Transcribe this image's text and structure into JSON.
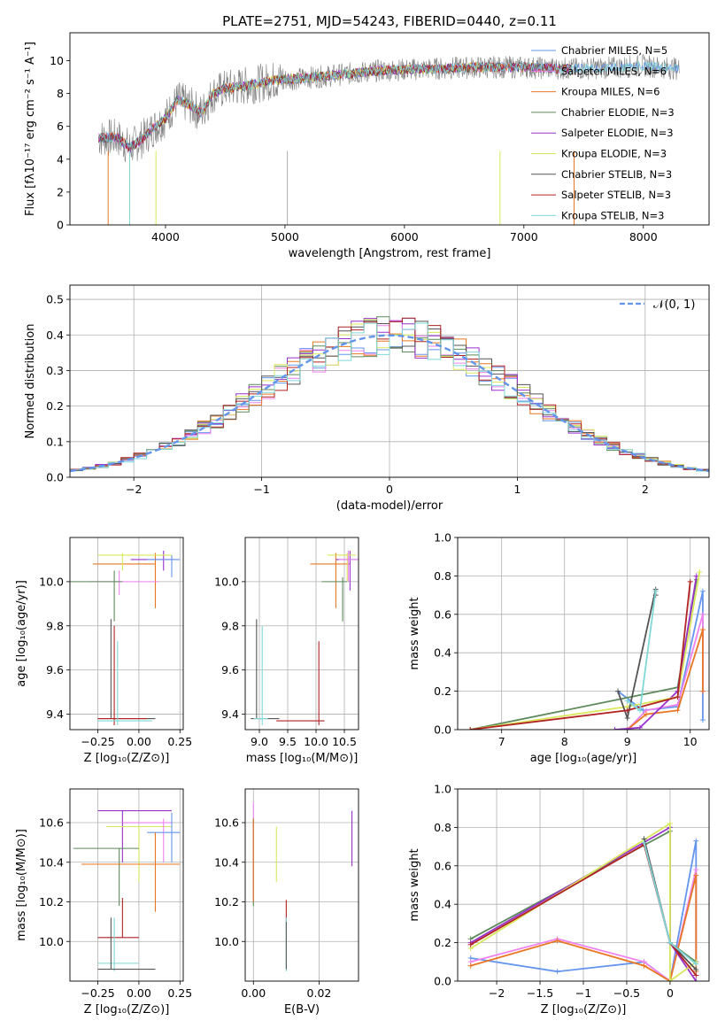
{
  "chart_data": [
    {
      "type": "line",
      "title": "PLATE=2751, MJD=54243, FIBERID=0440, z=0.11",
      "xlabel": "wavelength [Angstrom, rest frame]",
      "ylabel": "Flux [fλ10⁻¹⁷ erg cm⁻² s⁻¹ A⁻¹]",
      "xlim": [
        3200,
        8550
      ],
      "ylim": [
        0,
        11.7
      ],
      "xticks": [
        4000,
        5000,
        6000,
        7000,
        8000
      ],
      "yticks": [
        0,
        2,
        4,
        6,
        8,
        10
      ],
      "grid": false,
      "legend_position": "top-right",
      "legend": [
        {
          "name": "Chabrier MILES, N_SSP=5",
          "color": "#6495ed"
        },
        {
          "name": "Salpeter MILES, N_SSP=6",
          "color": "#ee82ee"
        },
        {
          "name": "Kroupa MILES, N_SSP=6",
          "color": "#e87722"
        },
        {
          "name": "Chabrier ELODIE, N_SSP=3",
          "color": "#5d8a5a"
        },
        {
          "name": "Salpeter ELODIE, N_SSP=3",
          "color": "#9932cc"
        },
        {
          "name": "Kroupa ELODIE, N_SSP=3",
          "color": "#d8e85a"
        },
        {
          "name": "Chabrier STELIB, N_SSP=3",
          "color": "#555555"
        },
        {
          "name": "Salpeter STELIB, N_SSP=3",
          "color": "#b22222"
        },
        {
          "name": "Kroupa STELIB, N_SSP=3",
          "color": "#7fd8d8"
        }
      ],
      "spectrum_envelope": {
        "x": [
          3440,
          3600,
          3700,
          3800,
          3900,
          4000,
          4100,
          4200,
          4300,
          4400,
          4500,
          4700,
          4900,
          5100,
          5400,
          5800,
          6200,
          6600,
          7000,
          7400,
          7800,
          8000,
          8300
        ],
        "y": [
          5.3,
          5.3,
          4.7,
          5.2,
          5.9,
          6.5,
          7.6,
          7.3,
          6.8,
          8.0,
          8.3,
          8.5,
          8.8,
          8.9,
          9.1,
          9.4,
          9.5,
          9.6,
          9.6,
          9.5,
          9.6,
          9.7,
          9.5
        ]
      }
    },
    {
      "type": "histogram",
      "xlabel": "(data-model)/error",
      "ylabel": "Normed distribution",
      "xlim": [
        -2.5,
        2.5
      ],
      "ylim": [
        0,
        0.54
      ],
      "xticks": [
        -2,
        -1,
        0,
        1,
        2
      ],
      "yticks": [
        0.0,
        0.1,
        0.2,
        0.3,
        0.4,
        0.5
      ],
      "grid": true,
      "legend_position": "top-right",
      "legend": [
        {
          "name": "𝒩(0, 1)",
          "color": "#6495ed",
          "style": "dashed"
        }
      ],
      "bin_width": 0.1
    },
    {
      "type": "errorbar",
      "xlabel": "Z [log₁₀(Z/Z⊙)]",
      "ylabel": "age  [log₁₀(age/yr)]",
      "xlim": [
        -0.42,
        0.27
      ],
      "ylim": [
        9.33,
        10.2
      ],
      "xticks": [
        -0.25,
        0.0,
        0.25
      ],
      "yticks": [
        9.4,
        9.6,
        9.8,
        10.0
      ],
      "grid": true
    },
    {
      "type": "errorbar",
      "xlabel": "mass [log₁₀(M/M⊙)]",
      "ylabel": "",
      "xlim": [
        8.75,
        10.75
      ],
      "ylim": [
        9.33,
        10.2
      ],
      "xticks": [
        9.0,
        9.5,
        10.0,
        10.5
      ],
      "yticks": [
        9.4,
        9.6,
        9.8,
        10.0
      ],
      "grid": true
    },
    {
      "type": "line",
      "xlabel": "age  [log₁₀(age/yr)]",
      "ylabel": "mass weight",
      "xlim": [
        6.3,
        10.3
      ],
      "ylim": [
        0,
        1
      ],
      "xticks": [
        7,
        8,
        9,
        10
      ],
      "yticks": [
        0.0,
        0.2,
        0.4,
        0.6,
        0.8,
        1.0
      ],
      "grid": true
    },
    {
      "type": "errorbar",
      "xlabel": "Z [log₁₀(Z/Z⊙)]",
      "ylabel": "mass [log₁₀(M/M⊙)]",
      "xlim": [
        -0.42,
        0.27
      ],
      "ylim": [
        9.8,
        10.77
      ],
      "xticks": [
        -0.25,
        0.0,
        0.25
      ],
      "yticks": [
        10.0,
        10.2,
        10.4,
        10.6
      ],
      "grid": true
    },
    {
      "type": "errorbar",
      "xlabel": "E(B-V)",
      "ylabel": "",
      "xlim": [
        -0.0025,
        0.032
      ],
      "ylim": [
        9.8,
        10.77
      ],
      "xticks": [
        0.0,
        0.02
      ],
      "yticks": [
        10.0,
        10.2,
        10.4,
        10.6
      ],
      "grid": true
    },
    {
      "type": "line",
      "xlabel": "Z [log₁₀(Z/Z⊙)]",
      "ylabel": "mass weight",
      "xlim": [
        -2.45,
        0.45
      ],
      "ylim": [
        0,
        1
      ],
      "xticks": [
        -2.0,
        -1.5,
        -1.0,
        -0.5,
        0.0
      ],
      "yticks": [
        0.0,
        0.2,
        0.4,
        0.6,
        0.8,
        1.0
      ],
      "grid": true
    }
  ]
}
